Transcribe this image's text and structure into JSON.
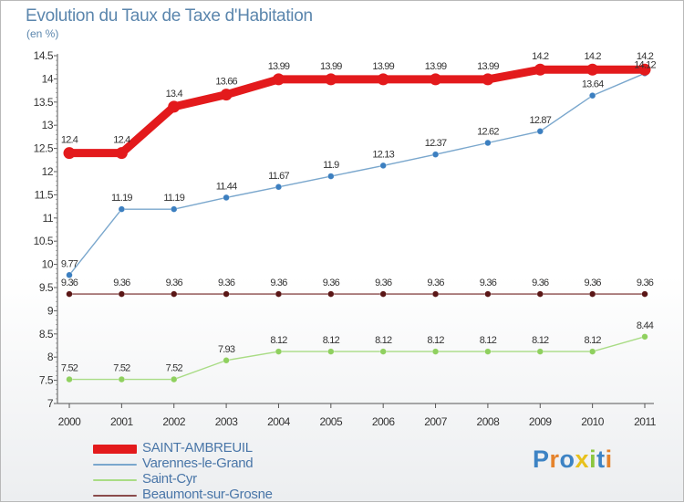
{
  "title": "Evolution du Taux de Taxe d'Habitation",
  "subtitle": "(en %)",
  "logo": {
    "text": "Proxiti",
    "colors": [
      "#3d83c4",
      "#e5832c",
      "#3d83c4",
      "#e8c11c",
      "#8cc63f",
      "#3d83c4",
      "#e5832c"
    ]
  },
  "chart_data": {
    "type": "line",
    "title": "Evolution du Taux de Taxe d'Habitation",
    "ylabel": "(en %)",
    "xlabel": "",
    "ylim": [
      7,
      14.5
    ],
    "yticks": [
      "7",
      "7.5",
      "8",
      "8.5",
      "9",
      "9.5",
      "10",
      "10.5",
      "11",
      "11.5",
      "12",
      "12.5",
      "13",
      "13.5",
      "14",
      "14.5"
    ],
    "x": [
      "2000",
      "2001",
      "2002",
      "2003",
      "2004",
      "2005",
      "2006",
      "2007",
      "2008",
      "2009",
      "2010",
      "2011"
    ],
    "grid": false,
    "legend_position": "bottom-left",
    "series": [
      {
        "name": "SAINT-AMBREUIL",
        "color": "#e31a1c",
        "thick": true,
        "values": [
          12.4,
          12.4,
          13.4,
          13.66,
          13.99,
          13.99,
          13.99,
          13.99,
          13.99,
          14.2,
          14.2,
          14.2
        ],
        "labels": [
          "12.4",
          "12.4",
          "13.4",
          "13.66",
          "13.99",
          "13.99",
          "13.99",
          "13.99",
          "13.99",
          "14.2",
          "14.2",
          "14.2"
        ]
      },
      {
        "name": "Varennes-le-Grand",
        "color": "#7aa7cd",
        "dot": "#3c7fc0",
        "values": [
          9.77,
          11.19,
          11.19,
          11.44,
          11.67,
          11.9,
          12.13,
          12.37,
          12.62,
          12.87,
          13.64,
          14.12
        ],
        "labels": [
          "9.77",
          "11.19",
          "11.19",
          "11.44",
          "11.67",
          "11.9",
          "12.13",
          "12.37",
          "12.62",
          "12.87",
          "13.64",
          "14.12"
        ]
      },
      {
        "name": "Saint-Cyr",
        "color": "#a9dc85",
        "dot": "#8fd05f",
        "values": [
          7.52,
          7.52,
          7.52,
          7.93,
          8.12,
          8.12,
          8.12,
          8.12,
          8.12,
          8.12,
          8.12,
          8.44
        ],
        "labels": [
          "7.52",
          "7.52",
          "7.52",
          "7.93",
          "8.12",
          "8.12",
          "8.12",
          "8.12",
          "8.12",
          "8.12",
          "8.12",
          "8.44"
        ]
      },
      {
        "name": "Beaumont-sur-Grosne",
        "color": "#8a4b4b",
        "dot": "#5a1616",
        "values": [
          9.36,
          9.36,
          9.36,
          9.36,
          9.36,
          9.36,
          9.36,
          9.36,
          9.36,
          9.36,
          9.36,
          9.36
        ],
        "labels": [
          "9.36",
          "9.36",
          "9.36",
          "9.36",
          "9.36",
          "9.36",
          "9.36",
          "9.36",
          "9.36",
          "9.36",
          "9.36",
          "9.36"
        ]
      }
    ]
  }
}
